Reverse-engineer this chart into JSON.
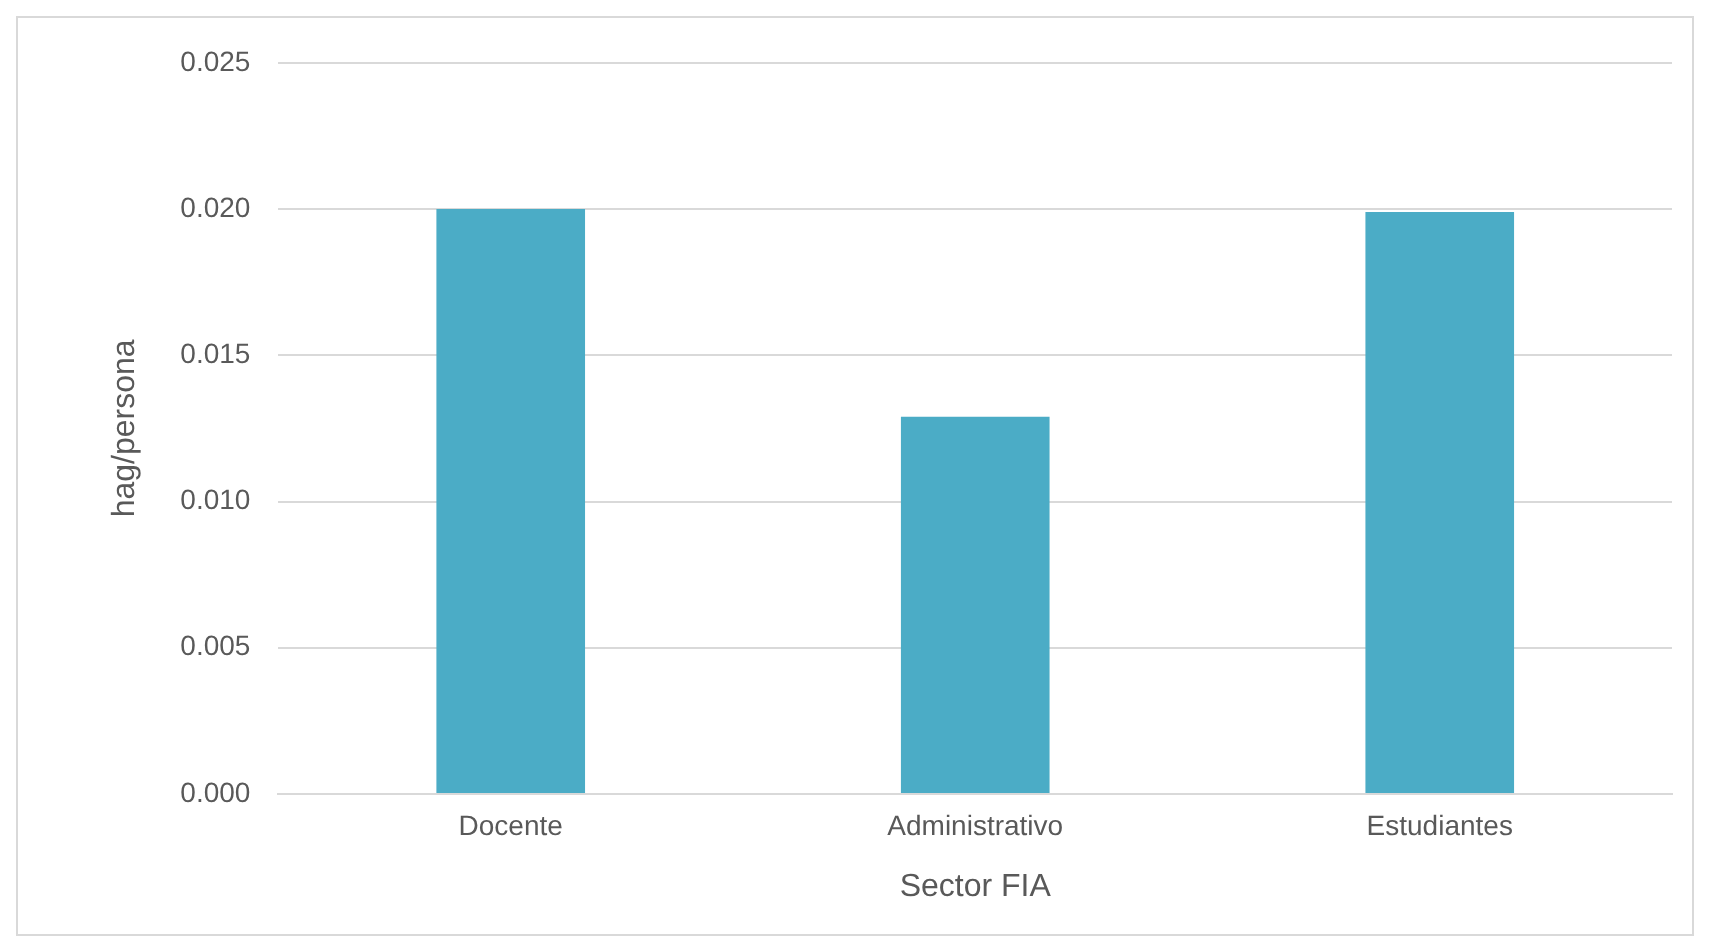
{
  "chart_data": {
    "type": "bar",
    "xlabel": "Sector FIA",
    "ylabel": "hag/persona",
    "categories": [
      "Docente",
      "Administrativo",
      "Estudiantes"
    ],
    "values": [
      0.02,
      0.0129,
      0.0199
    ],
    "color": "#4bacc6",
    "ylim": [
      0,
      0.025
    ],
    "yticks": [
      {
        "value": 0,
        "label": "0.000"
      },
      {
        "value": 0.005,
        "label": "0.005"
      },
      {
        "value": 0.01,
        "label": "0.010"
      },
      {
        "value": 0.015,
        "label": "0.015"
      },
      {
        "value": 0.02,
        "label": "0.020"
      },
      {
        "value": 0.025,
        "label": "0.025"
      }
    ],
    "grid": "y",
    "legend": false
  }
}
